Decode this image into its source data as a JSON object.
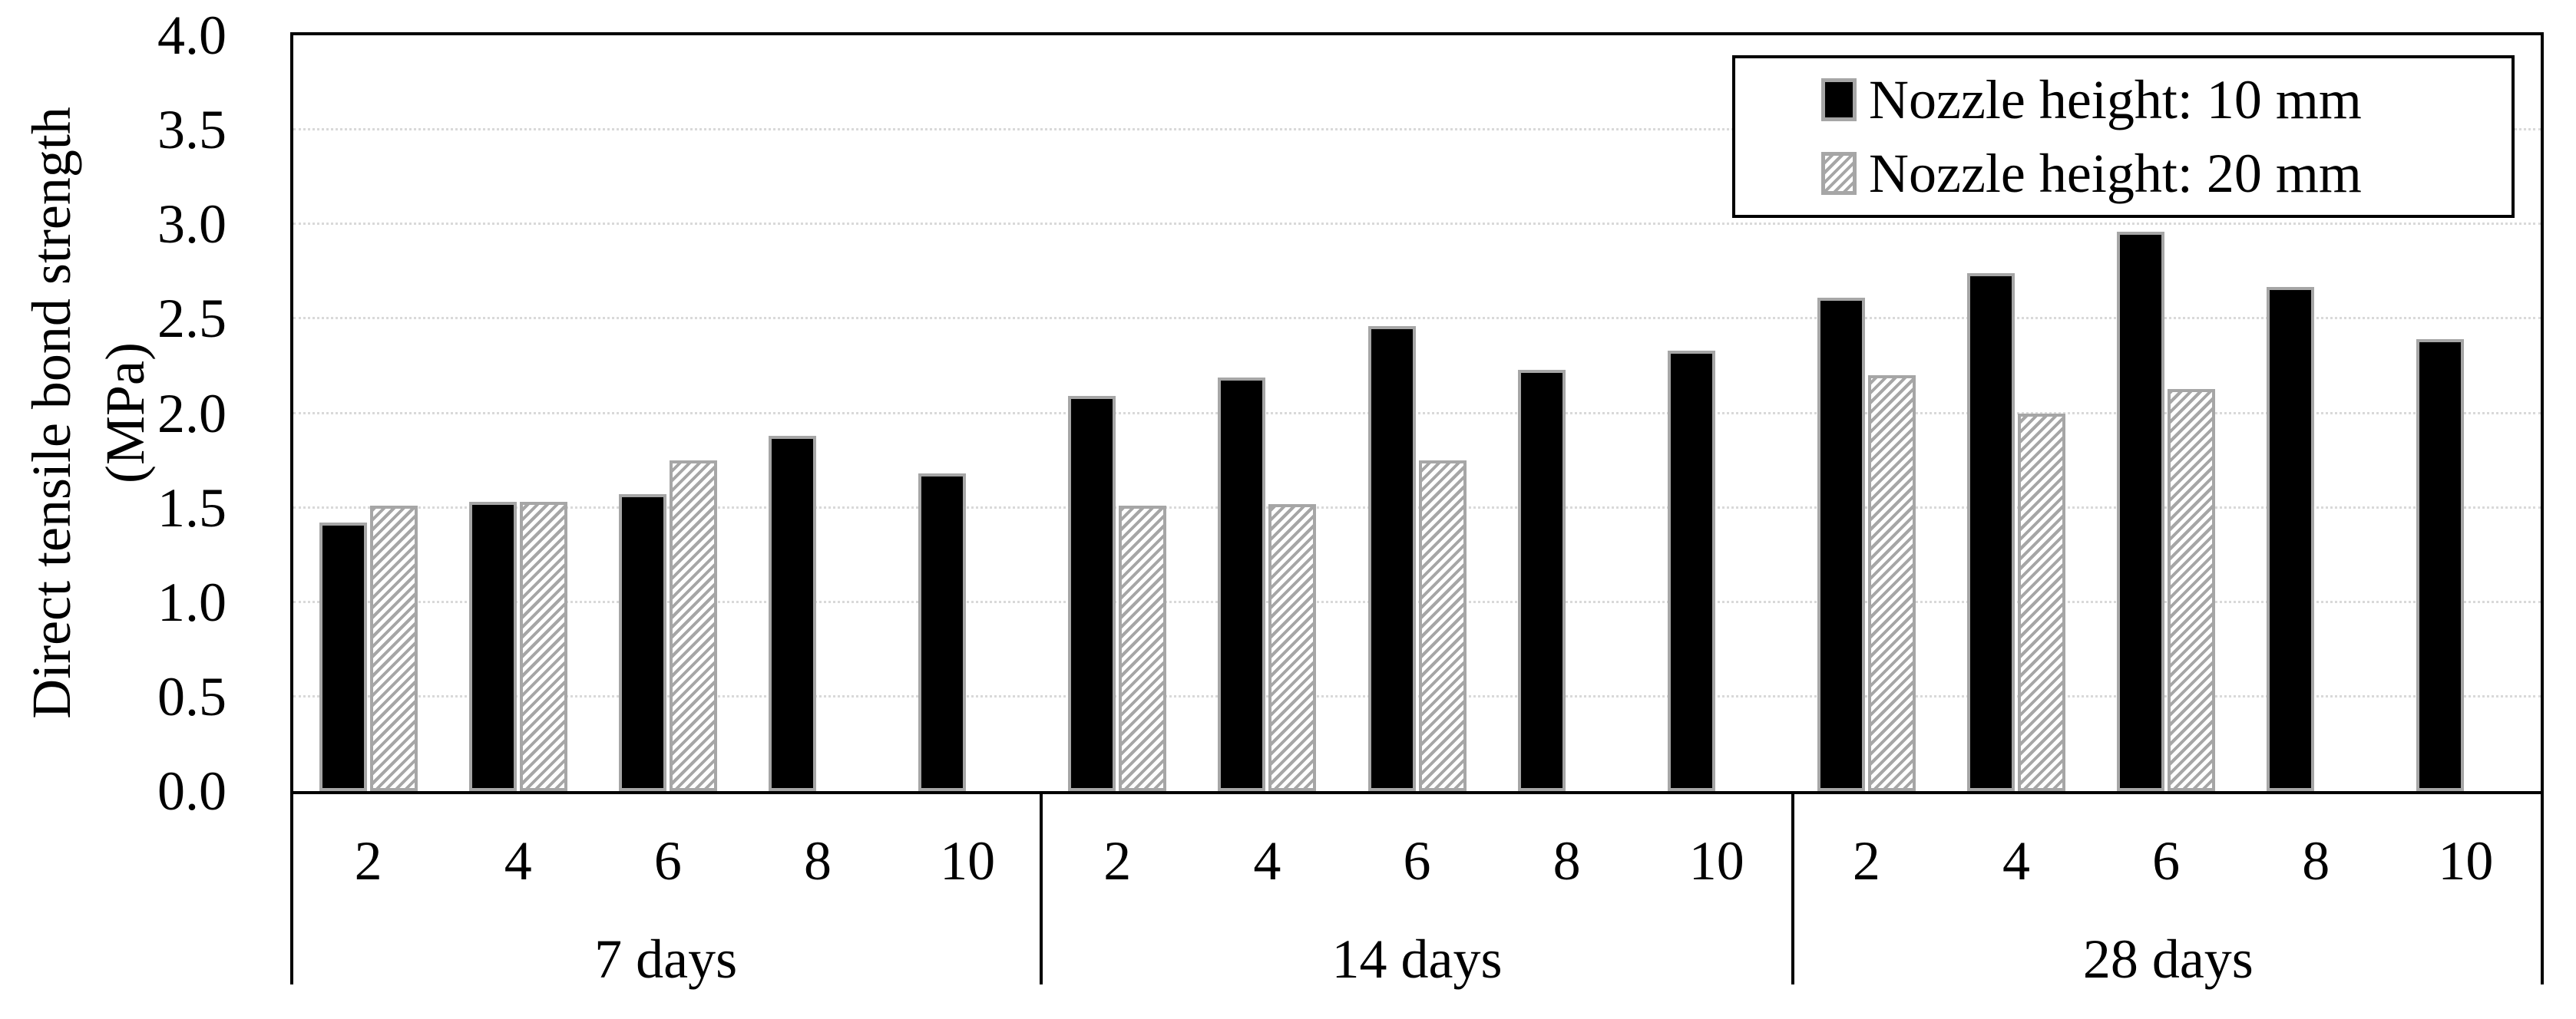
{
  "chart_data": {
    "type": "bar",
    "title": "",
    "y_axis": {
      "label_line1": "Direct tensile bond strength",
      "label_line2": "(MPa)",
      "min": 0.0,
      "max": 4.0,
      "tick_step": 0.5,
      "tick_labels": [
        "0.0",
        "0.5",
        "1.0",
        "1.5",
        "2.0",
        "2.5",
        "3.0",
        "3.5",
        "4.0"
      ]
    },
    "x_axis": {
      "group_labels": [
        "7 days",
        "14 days",
        "28 days"
      ],
      "category_labels": [
        "2",
        "4",
        "6",
        "8",
        "10"
      ]
    },
    "legend": {
      "position": "top-right",
      "entries": [
        "Nozzle height: 10 mm",
        "Nozzle height: 20 mm"
      ]
    },
    "series": [
      {
        "name": "Nozzle height: 10 mm",
        "style": "solid-black",
        "values": [
          [
            1.42,
            1.53,
            1.57,
            1.88,
            1.68
          ],
          [
            2.09,
            2.19,
            2.46,
            2.23,
            2.33
          ],
          [
            2.61,
            2.74,
            2.96,
            2.67,
            2.39
          ]
        ]
      },
      {
        "name": "Nozzle height: 20 mm",
        "style": "hatched",
        "values": [
          [
            1.51,
            1.53,
            1.75,
            null,
            null
          ],
          [
            1.51,
            1.52,
            1.75,
            null,
            null
          ],
          [
            2.2,
            2.0,
            2.13,
            null,
            null
          ]
        ]
      }
    ],
    "grid": {
      "show": true,
      "color": "#d9d9d9"
    },
    "colors": {
      "bar_fill": "#000000",
      "bar_outline": "#a6a6a6",
      "hatch_line": "#a6a6a6",
      "axis": "#000000",
      "gridline": "#d9d9d9",
      "background": "#ffffff"
    }
  }
}
